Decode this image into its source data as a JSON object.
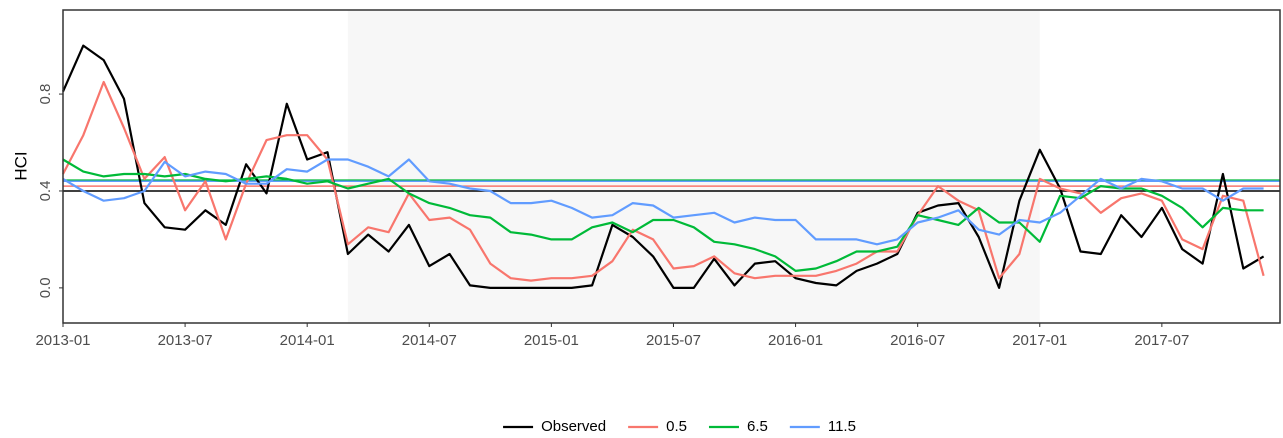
{
  "chart_data": {
    "type": "line",
    "y_label": "HCI",
    "x": [
      "2013-01",
      "2013-02",
      "2013-03",
      "2013-04",
      "2013-05",
      "2013-06",
      "2013-07",
      "2013-08",
      "2013-09",
      "2013-10",
      "2013-11",
      "2013-12",
      "2014-01",
      "2014-02",
      "2014-03",
      "2014-04",
      "2014-05",
      "2014-06",
      "2014-07",
      "2014-08",
      "2014-09",
      "2014-10",
      "2014-11",
      "2014-12",
      "2015-01",
      "2015-02",
      "2015-03",
      "2015-04",
      "2015-05",
      "2015-06",
      "2015-07",
      "2015-08",
      "2015-09",
      "2015-10",
      "2015-11",
      "2015-12",
      "2016-01",
      "2016-02",
      "2016-03",
      "2016-04",
      "2016-05",
      "2016-06",
      "2016-07",
      "2016-08",
      "2016-09",
      "2016-10",
      "2016-11",
      "2016-12",
      "2017-01",
      "2017-02",
      "2017-03",
      "2017-04",
      "2017-05",
      "2017-06",
      "2017-07",
      "2017-08",
      "2017-09",
      "2017-10",
      "2017-11",
      "2017-12"
    ],
    "xlim": [
      "2013-01",
      "2017-12"
    ],
    "xticks": [
      "2013-01",
      "2013-07",
      "2014-01",
      "2014-07",
      "2015-01",
      "2015-07",
      "2016-01",
      "2016-07",
      "2017-01",
      "2017-07"
    ],
    "shaded_range": [
      "2014-03",
      "2017-01"
    ],
    "ylim": [
      -0.145,
      1.147
    ],
    "yticks": [
      {
        "value": 0,
        "label": "0.0"
      },
      0.4,
      0.8
    ],
    "legend": "bottom",
    "series": [
      {
        "name": "Observed",
        "color": "#000000",
        "mean": 0.4,
        "values": [
          0.81,
          1.0,
          0.94,
          0.78,
          0.35,
          0.25,
          0.24,
          0.32,
          0.26,
          0.51,
          0.39,
          0.76,
          0.53,
          0.56,
          0.14,
          0.22,
          0.15,
          0.26,
          0.09,
          0.14,
          0.01,
          0.0,
          0.0,
          0.0,
          0.0,
          0.0,
          0.01,
          0.26,
          0.21,
          0.13,
          0.0,
          0.0,
          0.12,
          0.01,
          0.1,
          0.11,
          0.04,
          0.02,
          0.01,
          0.07,
          0.1,
          0.14,
          0.31,
          0.34,
          0.35,
          0.21,
          0.0,
          0.36,
          0.57,
          0.41,
          0.15,
          0.14,
          0.3,
          0.21,
          0.33,
          0.16,
          0.1,
          0.47,
          0.08,
          0.13
        ]
      },
      {
        "name": "0.5",
        "color": "#f8766d",
        "mean": 0.42,
        "values": [
          0.47,
          0.63,
          0.85,
          0.66,
          0.45,
          0.54,
          0.32,
          0.44,
          0.2,
          0.43,
          0.61,
          0.63,
          0.63,
          0.53,
          0.18,
          0.25,
          0.23,
          0.39,
          0.28,
          0.29,
          0.24,
          0.1,
          0.04,
          0.03,
          0.04,
          0.04,
          0.05,
          0.11,
          0.24,
          0.2,
          0.08,
          0.09,
          0.13,
          0.06,
          0.04,
          0.05,
          0.05,
          0.05,
          0.07,
          0.1,
          0.15,
          0.15,
          0.3,
          0.42,
          0.36,
          0.32,
          0.04,
          0.14,
          0.45,
          0.41,
          0.39,
          0.31,
          0.37,
          0.39,
          0.36,
          0.2,
          0.16,
          0.38,
          0.36,
          0.05
        ]
      },
      {
        "name": "6.5",
        "color": "#00ba38",
        "mean": 0.445,
        "values": [
          0.53,
          0.48,
          0.46,
          0.47,
          0.47,
          0.46,
          0.47,
          0.45,
          0.44,
          0.45,
          0.46,
          0.45,
          0.43,
          0.44,
          0.41,
          0.43,
          0.45,
          0.39,
          0.35,
          0.33,
          0.3,
          0.29,
          0.23,
          0.22,
          0.2,
          0.2,
          0.25,
          0.27,
          0.23,
          0.28,
          0.28,
          0.25,
          0.19,
          0.18,
          0.16,
          0.13,
          0.07,
          0.08,
          0.11,
          0.15,
          0.15,
          0.17,
          0.3,
          0.28,
          0.26,
          0.33,
          0.27,
          0.27,
          0.19,
          0.38,
          0.37,
          0.42,
          0.41,
          0.41,
          0.38,
          0.33,
          0.25,
          0.33,
          0.32,
          0.32
        ]
      },
      {
        "name": "11.5",
        "color": "#619cff",
        "mean": 0.44,
        "values": [
          0.45,
          0.4,
          0.36,
          0.37,
          0.4,
          0.52,
          0.46,
          0.48,
          0.47,
          0.43,
          0.43,
          0.49,
          0.48,
          0.53,
          0.53,
          0.5,
          0.46,
          0.53,
          0.44,
          0.43,
          0.41,
          0.4,
          0.35,
          0.35,
          0.36,
          0.33,
          0.29,
          0.3,
          0.35,
          0.34,
          0.29,
          0.3,
          0.31,
          0.27,
          0.29,
          0.28,
          0.28,
          0.2,
          0.2,
          0.2,
          0.18,
          0.2,
          0.27,
          0.29,
          0.32,
          0.24,
          0.22,
          0.28,
          0.27,
          0.31,
          0.38,
          0.45,
          0.41,
          0.45,
          0.44,
          0.41,
          0.41,
          0.36,
          0.41,
          0.41
        ]
      }
    ]
  }
}
